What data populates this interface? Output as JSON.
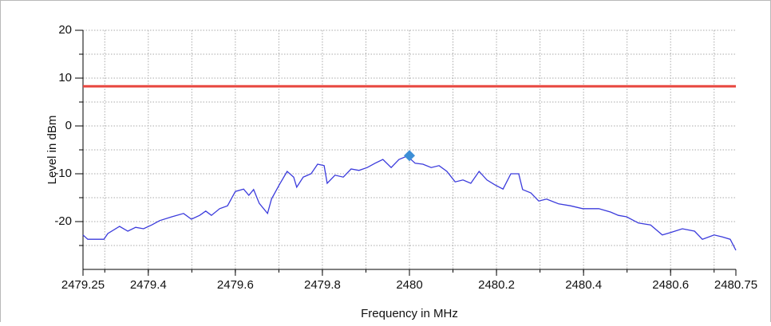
{
  "chart_data": {
    "type": "line",
    "xlabel": "Frequency in MHz",
    "ylabel": "Level in dBm",
    "xlim": [
      2479.25,
      2480.75
    ],
    "ylim": [
      -30,
      20
    ],
    "xticks": [
      2479.25,
      2479.4,
      2479.6,
      2479.8,
      2480,
      2480.2,
      2480.4,
      2480.6,
      2480.75
    ],
    "xgrid": [
      2479.3,
      2479.4,
      2479.5,
      2479.6,
      2479.7,
      2479.8,
      2479.9,
      2480,
      2480.1,
      2480.2,
      2480.3,
      2480.4,
      2480.5,
      2480.6,
      2480.7
    ],
    "yticks": [
      -20,
      -10,
      0,
      10,
      20
    ],
    "yminor": [
      -25,
      -15,
      -5,
      5,
      15
    ],
    "grid": true,
    "limit": {
      "value": 8.3,
      "color": "#e8473f"
    },
    "marker": {
      "x": 2480.0,
      "y": -6.2,
      "color": "#3d8fd6"
    },
    "series": [
      {
        "color": "#3b3bdc",
        "x": [
          2479.25,
          2479.261,
          2479.298,
          2479.307,
          2479.334,
          2479.353,
          2479.371,
          2479.389,
          2479.408,
          2479.426,
          2479.454,
          2479.481,
          2479.499,
          2479.518,
          2479.532,
          2479.545,
          2479.564,
          2479.582,
          2479.6,
          2479.619,
          2479.631,
          2479.642,
          2479.655,
          2479.674,
          2479.683,
          2479.701,
          2479.719,
          2479.734,
          2479.741,
          2479.756,
          2479.774,
          2479.789,
          2479.804,
          2479.811,
          2479.829,
          2479.848,
          2479.866,
          2479.884,
          2479.903,
          2479.921,
          2479.939,
          2479.958,
          2479.976,
          2479.995,
          2480.013,
          2480.031,
          2480.05,
          2480.068,
          2480.086,
          2480.105,
          2480.123,
          2480.141,
          2480.16,
          2480.178,
          2480.196,
          2480.215,
          2480.233,
          2480.251,
          2480.26,
          2480.279,
          2480.297,
          2480.315,
          2480.343,
          2480.37,
          2480.398,
          2480.416,
          2480.435,
          2480.462,
          2480.48,
          2480.499,
          2480.526,
          2480.554,
          2480.581,
          2480.6,
          2480.627,
          2480.655,
          2480.673,
          2480.7,
          2480.719,
          2480.737,
          2480.75
        ],
        "values": [
          -22.8,
          -23.7,
          -23.7,
          -22.5,
          -21,
          -22,
          -21.2,
          -21.5,
          -20.7,
          -19.8,
          -19,
          -18.3,
          -19.5,
          -18.7,
          -17.8,
          -18.7,
          -17.3,
          -16.7,
          -13.7,
          -13.2,
          -14.5,
          -13.3,
          -16.2,
          -18.3,
          -15.3,
          -12.3,
          -9.5,
          -10.7,
          -12.8,
          -10.7,
          -10,
          -8,
          -8.3,
          -12,
          -10.3,
          -10.7,
          -9,
          -9.3,
          -8.7,
          -7.8,
          -7,
          -8.7,
          -7,
          -6.3,
          -7.8,
          -8,
          -8.7,
          -8.3,
          -9.5,
          -11.7,
          -11.3,
          -12,
          -9.5,
          -11.3,
          -12.3,
          -13.2,
          -10,
          -10,
          -13.3,
          -14,
          -15.7,
          -15.3,
          -16.3,
          -16.7,
          -17.3,
          -17.3,
          -17.3,
          -18,
          -18.7,
          -19,
          -20.3,
          -20.7,
          -22.8,
          -22.3,
          -21.5,
          -22,
          -23.7,
          -22.8,
          -23.2,
          -23.7,
          -26
        ]
      }
    ]
  }
}
